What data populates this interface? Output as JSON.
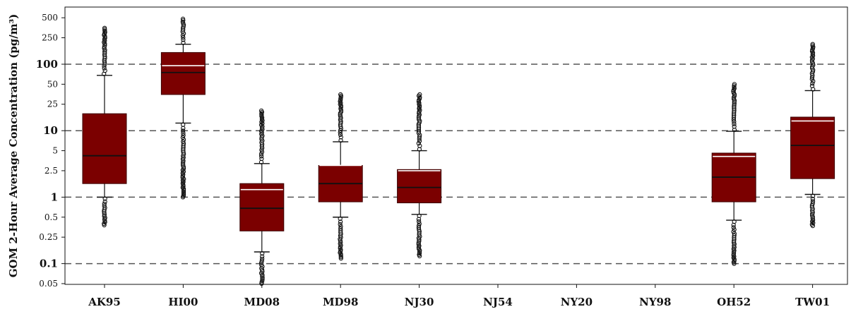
{
  "chart_data": {
    "type": "boxplot",
    "ylabel": "GOM 2-Hour Average Concentration (pg/m³)",
    "xlabel": "",
    "yscale": "log",
    "ylim": [
      0.05,
      600
    ],
    "yticks": [
      {
        "value": 500,
        "label": "500",
        "major": false
      },
      {
        "value": 250,
        "label": "250",
        "major": false
      },
      {
        "value": 100,
        "label": "100",
        "major": true
      },
      {
        "value": 50,
        "label": "50",
        "major": false
      },
      {
        "value": 25,
        "label": "25",
        "major": false
      },
      {
        "value": 10,
        "label": "10",
        "major": true
      },
      {
        "value": 5,
        "label": "5",
        "major": false
      },
      {
        "value": 2.5,
        "label": "2.5",
        "major": false
      },
      {
        "value": 1,
        "label": "1",
        "major": true
      },
      {
        "value": 0.5,
        "label": "0.5",
        "major": false
      },
      {
        "value": 0.25,
        "label": "0.25",
        "major": false
      },
      {
        "value": 0.1,
        "label": "0.1",
        "major": true
      },
      {
        "value": 0.05,
        "label": "0.05",
        "major": false
      }
    ],
    "reference_lines": [
      100,
      10,
      1,
      0.1
    ],
    "grid": "dashed lines at 0.1, 1, 10, 100",
    "colors": {
      "box_fill": "#7b0000",
      "median_line": "#111111",
      "mean_line": "#ffffff",
      "whisker": "#111111",
      "outlier": "#111111",
      "reference_line": "#555555"
    },
    "categories": [
      "AK95",
      "HI00",
      "MD08",
      "MD98",
      "NJ30",
      "NJ54",
      "NY20",
      "NY98",
      "OH52",
      "TW01"
    ],
    "boxes": [
      {
        "site": "AK95",
        "whisker_low": 1.0,
        "q1": 1.6,
        "median": 4.2,
        "q3": 18,
        "whisker_high": 68,
        "mean": null,
        "outlier_low_min": 0.38,
        "outlier_high_max": 350
      },
      {
        "site": "HI00",
        "whisker_low": 13,
        "q1": 35,
        "median": 75,
        "q3": 150,
        "whisker_high": 200,
        "mean": 95,
        "outlier_low_min": 1.0,
        "outlier_high_max": 480
      },
      {
        "site": "MD08",
        "whisker_low": 0.15,
        "q1": 0.31,
        "median": 0.68,
        "q3": 1.6,
        "whisker_high": 3.2,
        "mean": 1.3,
        "outlier_low_min": 0.05,
        "outlier_high_max": 20
      },
      {
        "site": "MD98",
        "whisker_low": 0.5,
        "q1": 0.85,
        "median": 1.6,
        "q3": 3.0,
        "whisker_high": 6.8,
        "mean": 3.0,
        "outlier_low_min": 0.12,
        "outlier_high_max": 35
      },
      {
        "site": "NJ30",
        "whisker_low": 0.55,
        "q1": 0.82,
        "median": 1.4,
        "q3": 2.6,
        "whisker_high": 5.0,
        "mean": 2.5,
        "outlier_low_min": 0.13,
        "outlier_high_max": 35
      },
      {
        "site": "NJ54",
        "empty": true
      },
      {
        "site": "NY20",
        "empty": true
      },
      {
        "site": "NY98",
        "empty": true
      },
      {
        "site": "OH52",
        "whisker_low": 0.45,
        "q1": 0.85,
        "median": 2.0,
        "q3": 4.6,
        "whisker_high": 9.8,
        "mean": 4.1,
        "outlier_low_min": 0.1,
        "outlier_high_max": 50
      },
      {
        "site": "TW01",
        "whisker_low": 1.1,
        "q1": 1.9,
        "median": 6.0,
        "q3": 16,
        "whisker_high": 40,
        "mean": 14,
        "outlier_low_min": 0.37,
        "outlier_high_max": 200
      }
    ]
  }
}
